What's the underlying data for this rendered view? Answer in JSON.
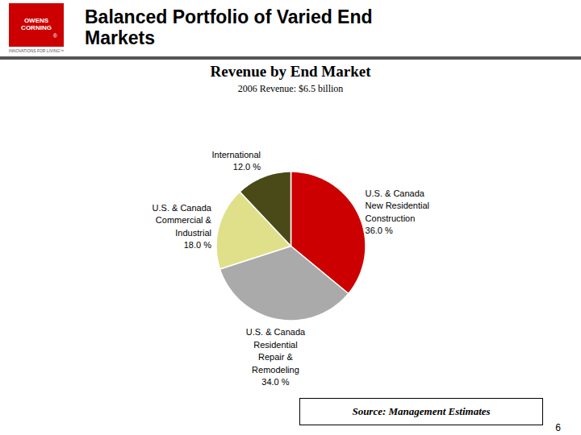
{
  "chart_data": {
    "type": "pie",
    "title": "Revenue by End Market",
    "subtitle": "2006 Revenue: $6.5 billion",
    "categories": [
      "U.S. & Canada\nNew Residential\nConstruction",
      "U.S. & Canada\nResidential\nRepair &\nRemodeling",
      "U.S. & Canada\nCommercial &\nIndustrial",
      "International"
    ],
    "values": [
      36.0,
      34.0,
      18.0,
      12.0
    ],
    "value_labels": [
      "36.0 %",
      "34.0 %",
      "18.0 %",
      "12.0 %"
    ],
    "data_labels": true,
    "colors": [
      "#CC0000",
      "#AAAAAA",
      "#E0E08A",
      "#4A4A18"
    ],
    "annotations": [
      "Balanced Portfolio of Varied End\nMarkets",
      "OWENS\nCORNING",
      "®",
      "INNOVATIONS FOR LIVING™",
      "Source: Management Estimates",
      "6"
    ]
  }
}
